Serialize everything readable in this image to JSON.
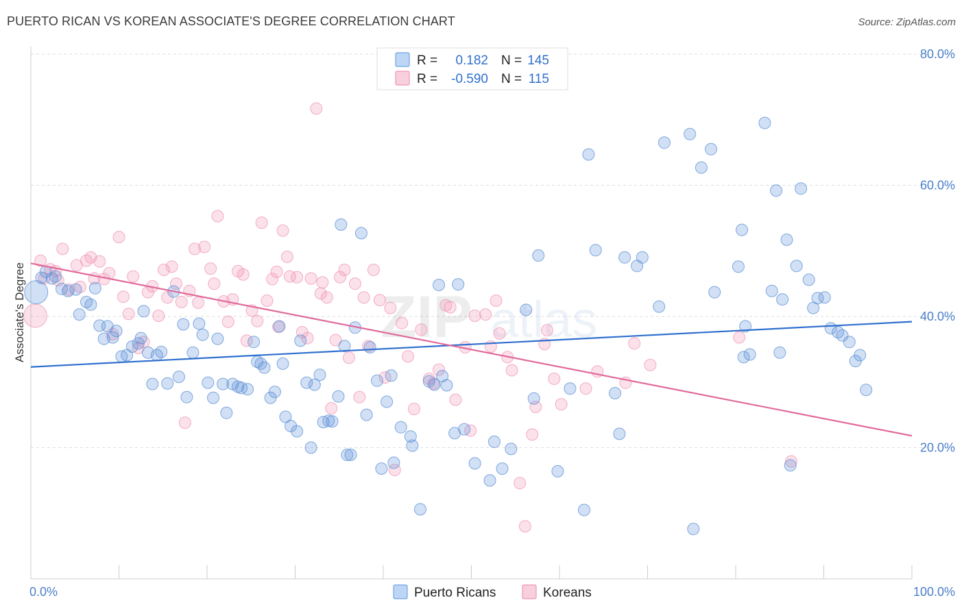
{
  "title": "PUERTO RICAN VS KOREAN ASSOCIATE'S DEGREE CORRELATION CHART",
  "source": "Source: ZipAtlas.com",
  "watermark": {
    "part1": "ZIP",
    "part2": "atlas"
  },
  "legend_top": [
    {
      "r_label": "R =",
      "r_value": "0.182",
      "n_label": "N =",
      "n_value": "145",
      "color": "#6fa3e8"
    },
    {
      "r_label": "R =",
      "r_value": "-0.590",
      "n_label": "N =",
      "n_value": "115",
      "color": "#f095b3"
    }
  ],
  "legend_bottom": [
    {
      "label": "Puerto Ricans",
      "color": "#6fa3e8"
    },
    {
      "label": "Koreans",
      "color": "#f095b3"
    }
  ],
  "colors": {
    "blue": "#5b8fd6",
    "blue_line": "#2f6fce",
    "pink": "#f095b3",
    "pink_line": "#e0699a",
    "tick_text": "#4a7fc9",
    "grid": "#dddddd"
  },
  "chart_data": {
    "type": "scatter",
    "ylabel": "Associate's Degree",
    "xlabel": "",
    "xlim": [
      0,
      100
    ],
    "ylim": [
      0,
      80
    ],
    "x_tick_labels": [
      "0.0%",
      "100.0%"
    ],
    "y_ticks": [
      20,
      40,
      60,
      80
    ],
    "y_tick_labels": [
      "20.0%",
      "40.0%",
      "60.0%",
      "80.0%"
    ],
    "grid": true,
    "series": [
      {
        "name": "Puerto Ricans",
        "r": 0.182,
        "n": 145,
        "trend": {
          "x": [
            0,
            100
          ],
          "y": [
            32.3,
            39.2
          ]
        },
        "points": [
          [
            0.6,
            43.7
          ],
          [
            1.2,
            45.9
          ],
          [
            1.7,
            46.8
          ],
          [
            2.4,
            45.8
          ],
          [
            2.8,
            46.1
          ],
          [
            3.5,
            44.2
          ],
          [
            4.2,
            43.9
          ],
          [
            5.1,
            44.1
          ],
          [
            5.5,
            40.3
          ],
          [
            6.3,
            42.2
          ],
          [
            6.8,
            41.8
          ],
          [
            7.3,
            44.3
          ],
          [
            7.8,
            38.6
          ],
          [
            8.3,
            36.6
          ],
          [
            8.7,
            38.5
          ],
          [
            9.3,
            36.8
          ],
          [
            9.7,
            37.8
          ],
          [
            10.3,
            33.9
          ],
          [
            10.9,
            34.1
          ],
          [
            11.5,
            35.4
          ],
          [
            12.2,
            35.9
          ],
          [
            12.5,
            36.7
          ],
          [
            12.8,
            40.8
          ],
          [
            13.3,
            34.5
          ],
          [
            13.8,
            29.7
          ],
          [
            14.3,
            34.1
          ],
          [
            14.8,
            34.6
          ],
          [
            15.5,
            29.8
          ],
          [
            16.2,
            43.8
          ],
          [
            16.8,
            30.8
          ],
          [
            17.3,
            38.8
          ],
          [
            17.7,
            27.7
          ],
          [
            18.4,
            34.5
          ],
          [
            19.1,
            38.9
          ],
          [
            19.5,
            37.2
          ],
          [
            20.1,
            29.9
          ],
          [
            20.7,
            27.6
          ],
          [
            21.2,
            36.6
          ],
          [
            21.8,
            29.7
          ],
          [
            22.2,
            25.3
          ],
          [
            22.9,
            29.7
          ],
          [
            23.5,
            29.3
          ],
          [
            23.9,
            29.1
          ],
          [
            24.6,
            28.9
          ],
          [
            25.3,
            36.1
          ],
          [
            25.7,
            33.1
          ],
          [
            26.1,
            32.8
          ],
          [
            26.5,
            32.2
          ],
          [
            27.2,
            27.6
          ],
          [
            27.7,
            28.5
          ],
          [
            28.2,
            38.5
          ],
          [
            28.6,
            32.8
          ],
          [
            28.9,
            24.7
          ],
          [
            29.5,
            23.3
          ],
          [
            30.2,
            22.5
          ],
          [
            30.6,
            36.3
          ],
          [
            31.3,
            29.9
          ],
          [
            31.8,
            20.0
          ],
          [
            32.2,
            29.6
          ],
          [
            32.8,
            31.1
          ],
          [
            33.2,
            23.9
          ],
          [
            33.8,
            24.1
          ],
          [
            34.2,
            24.0
          ],
          [
            34.9,
            27.8
          ],
          [
            35.2,
            54.0
          ],
          [
            35.6,
            35.5
          ],
          [
            35.9,
            18.9
          ],
          [
            36.3,
            18.9
          ],
          [
            36.8,
            38.3
          ],
          [
            37.5,
            52.7
          ],
          [
            38.1,
            25.0
          ],
          [
            38.5,
            35.3
          ],
          [
            39.3,
            30.2
          ],
          [
            39.8,
            16.8
          ],
          [
            40.4,
            27.0
          ],
          [
            40.9,
            31.0
          ],
          [
            41.2,
            17.7
          ],
          [
            42.0,
            23.1
          ],
          [
            43.1,
            21.7
          ],
          [
            43.3,
            20.3
          ],
          [
            44.2,
            10.6
          ],
          [
            45.2,
            30.1
          ],
          [
            45.8,
            29.6
          ],
          [
            46.3,
            44.8
          ],
          [
            46.7,
            30.9
          ],
          [
            47.2,
            29.5
          ],
          [
            48.1,
            22.2
          ],
          [
            48.5,
            44.9
          ],
          [
            49.2,
            22.8
          ],
          [
            50.4,
            17.6
          ],
          [
            52.1,
            15.0
          ],
          [
            52.6,
            20.9
          ],
          [
            53.5,
            16.8
          ],
          [
            54.5,
            19.8
          ],
          [
            56.2,
            41.0
          ],
          [
            57.1,
            27.5
          ],
          [
            57.6,
            49.3
          ],
          [
            59.8,
            16.4
          ],
          [
            61.2,
            29.0
          ],
          [
            62.8,
            10.5
          ],
          [
            63.3,
            64.7
          ],
          [
            64.1,
            50.1
          ],
          [
            66.3,
            28.3
          ],
          [
            66.8,
            22.1
          ],
          [
            67.4,
            49.0
          ],
          [
            68.8,
            47.7
          ],
          [
            69.4,
            49.0
          ],
          [
            71.3,
            41.5
          ],
          [
            71.9,
            66.5
          ],
          [
            74.8,
            67.8
          ],
          [
            75.2,
            7.6
          ],
          [
            76.1,
            62.7
          ],
          [
            77.2,
            65.5
          ],
          [
            77.6,
            43.7
          ],
          [
            80.3,
            47.6
          ],
          [
            80.7,
            53.2
          ],
          [
            80.9,
            33.8
          ],
          [
            81.1,
            38.5
          ],
          [
            81.6,
            34.2
          ],
          [
            83.3,
            69.5
          ],
          [
            84.1,
            43.9
          ],
          [
            84.6,
            59.2
          ],
          [
            85.0,
            34.5
          ],
          [
            85.3,
            42.6
          ],
          [
            85.8,
            51.7
          ],
          [
            86.2,
            17.3
          ],
          [
            86.9,
            47.7
          ],
          [
            87.4,
            59.5
          ],
          [
            88.3,
            45.6
          ],
          [
            88.8,
            41.3
          ],
          [
            89.3,
            42.8
          ],
          [
            90.1,
            42.9
          ],
          [
            90.8,
            38.2
          ],
          [
            91.6,
            37.6
          ],
          [
            92.1,
            37.1
          ],
          [
            92.9,
            36.1
          ],
          [
            93.6,
            33.2
          ],
          [
            94.1,
            34.1
          ],
          [
            94.8,
            28.8
          ]
        ]
      },
      {
        "name": "Koreans",
        "r": -0.59,
        "n": 115,
        "trend": {
          "x": [
            0,
            100
          ],
          "y": [
            48.1,
            21.8
          ]
        },
        "points": [
          [
            0.5,
            40.1
          ],
          [
            1.1,
            48.5
          ],
          [
            1.5,
            45.8
          ],
          [
            2.2,
            47.2
          ],
          [
            2.8,
            46.9
          ],
          [
            3.1,
            45.5
          ],
          [
            3.6,
            50.3
          ],
          [
            4.3,
            44.1
          ],
          [
            5.2,
            47.8
          ],
          [
            5.6,
            44.5
          ],
          [
            6.3,
            48.5
          ],
          [
            6.8,
            49.0
          ],
          [
            7.2,
            45.8
          ],
          [
            7.8,
            48.4
          ],
          [
            8.3,
            45.7
          ],
          [
            8.9,
            46.6
          ],
          [
            9.3,
            37.3
          ],
          [
            10.0,
            52.1
          ],
          [
            10.5,
            43.0
          ],
          [
            11.1,
            40.4
          ],
          [
            11.6,
            46.1
          ],
          [
            12.2,
            35.2
          ],
          [
            12.8,
            36.1
          ],
          [
            13.3,
            43.7
          ],
          [
            13.8,
            44.6
          ],
          [
            14.5,
            40.1
          ],
          [
            15.1,
            47.1
          ],
          [
            15.5,
            42.9
          ],
          [
            16.0,
            47.6
          ],
          [
            16.5,
            45.0
          ],
          [
            17.1,
            42.2
          ],
          [
            17.5,
            23.8
          ],
          [
            18.0,
            43.9
          ],
          [
            18.6,
            50.3
          ],
          [
            19.0,
            42.1
          ],
          [
            19.7,
            50.6
          ],
          [
            20.4,
            47.3
          ],
          [
            20.8,
            45.0
          ],
          [
            21.2,
            55.3
          ],
          [
            21.9,
            42.3
          ],
          [
            22.4,
            39.2
          ],
          [
            22.9,
            42.6
          ],
          [
            23.5,
            46.9
          ],
          [
            24.1,
            46.4
          ],
          [
            24.5,
            36.3
          ],
          [
            25.1,
            40.9
          ],
          [
            25.7,
            39.3
          ],
          [
            26.2,
            54.3
          ],
          [
            26.8,
            42.4
          ],
          [
            27.4,
            45.7
          ],
          [
            27.9,
            46.8
          ],
          [
            28.1,
            38.4
          ],
          [
            28.6,
            53.1
          ],
          [
            29.1,
            49.1
          ],
          [
            29.4,
            46.1
          ],
          [
            30.2,
            46.0
          ],
          [
            30.8,
            37.6
          ],
          [
            31.4,
            36.7
          ],
          [
            31.8,
            45.8
          ],
          [
            32.4,
            71.7
          ],
          [
            32.9,
            43.5
          ],
          [
            33.1,
            45.2
          ],
          [
            33.6,
            42.9
          ],
          [
            34.1,
            26.0
          ],
          [
            34.6,
            36.4
          ],
          [
            35.1,
            46.0
          ],
          [
            35.6,
            47.1
          ],
          [
            36.1,
            33.7
          ],
          [
            36.8,
            45.0
          ],
          [
            37.3,
            27.7
          ],
          [
            37.8,
            42.9
          ],
          [
            38.3,
            35.5
          ],
          [
            38.9,
            47.1
          ],
          [
            39.6,
            42.5
          ],
          [
            40.2,
            30.7
          ],
          [
            40.8,
            41.3
          ],
          [
            41.3,
            16.6
          ],
          [
            42.1,
            39.0
          ],
          [
            42.8,
            33.9
          ],
          [
            43.5,
            25.9
          ],
          [
            44.3,
            38.0
          ],
          [
            45.2,
            30.5
          ],
          [
            45.7,
            29.8
          ],
          [
            46.3,
            31.9
          ],
          [
            47.1,
            41.7
          ],
          [
            47.6,
            41.4
          ],
          [
            48.2,
            27.3
          ],
          [
            49.3,
            35.3
          ],
          [
            49.9,
            22.6
          ],
          [
            50.4,
            40.1
          ],
          [
            51.6,
            40.3
          ],
          [
            52.2,
            35.4
          ],
          [
            52.8,
            42.4
          ],
          [
            53.2,
            37.4
          ],
          [
            54.1,
            33.8
          ],
          [
            54.6,
            31.8
          ],
          [
            55.5,
            14.6
          ],
          [
            56.1,
            8.0
          ],
          [
            56.9,
            22.0
          ],
          [
            57.3,
            26.2
          ],
          [
            58.3,
            35.8
          ],
          [
            58.6,
            37.9
          ],
          [
            59.4,
            30.5
          ],
          [
            60.2,
            26.6
          ],
          [
            63.0,
            29.0
          ],
          [
            64.3,
            31.6
          ],
          [
            67.5,
            29.9
          ],
          [
            68.5,
            35.9
          ],
          [
            70.3,
            32.6
          ],
          [
            80.4,
            36.8
          ],
          [
            86.3,
            17.9
          ]
        ]
      }
    ]
  }
}
